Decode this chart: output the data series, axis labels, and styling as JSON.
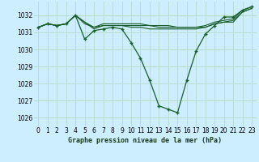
{
  "title": "Graphe pression niveau de la mer (hPa)",
  "bg_color": "#cceeff",
  "grid_color": "#b8ddd0",
  "line_color": "#1a5c2a",
  "xlim": [
    -0.5,
    23.5
  ],
  "ylim": [
    1025.5,
    1032.8
  ],
  "yticks": [
    1026,
    1027,
    1028,
    1029,
    1030,
    1031,
    1032
  ],
  "xticks": [
    0,
    1,
    2,
    3,
    4,
    5,
    6,
    7,
    8,
    9,
    10,
    11,
    12,
    13,
    14,
    15,
    16,
    17,
    18,
    19,
    20,
    21,
    22,
    23
  ],
  "series": [
    [
      1031.3,
      1031.5,
      1031.4,
      1031.5,
      1032.0,
      1031.5,
      1031.3,
      1031.4,
      1031.4,
      1031.4,
      1031.4,
      1031.4,
      1031.4,
      1031.3,
      1031.3,
      1031.3,
      1031.3,
      1031.3,
      1031.3,
      1031.5,
      1031.6,
      1031.6,
      1032.2,
      1032.4
    ],
    [
      1031.3,
      1031.5,
      1031.4,
      1031.5,
      1032.0,
      1031.6,
      1031.3,
      1031.5,
      1031.5,
      1031.5,
      1031.5,
      1031.5,
      1031.4,
      1031.4,
      1031.4,
      1031.3,
      1031.3,
      1031.3,
      1031.4,
      1031.6,
      1031.7,
      1031.8,
      1032.3,
      1032.5
    ],
    [
      1031.3,
      1031.5,
      1031.4,
      1031.5,
      1032.0,
      1031.6,
      1031.2,
      1031.4,
      1031.4,
      1031.4,
      1031.3,
      1031.3,
      1031.2,
      1031.2,
      1031.2,
      1031.2,
      1031.2,
      1031.2,
      1031.3,
      1031.5,
      1031.6,
      1031.7,
      1032.2,
      1032.4
    ],
    [
      1031.3,
      1031.5,
      1031.4,
      1031.5,
      1032.0,
      1030.6,
      1031.1,
      1031.2,
      1031.3,
      1031.2,
      1030.4,
      1029.5,
      1028.2,
      1026.7,
      1026.5,
      1026.3,
      1028.2,
      1029.9,
      1030.9,
      1031.4,
      1031.9,
      1031.9,
      1032.3,
      1032.5
    ]
  ],
  "marker_series_idx": 3
}
